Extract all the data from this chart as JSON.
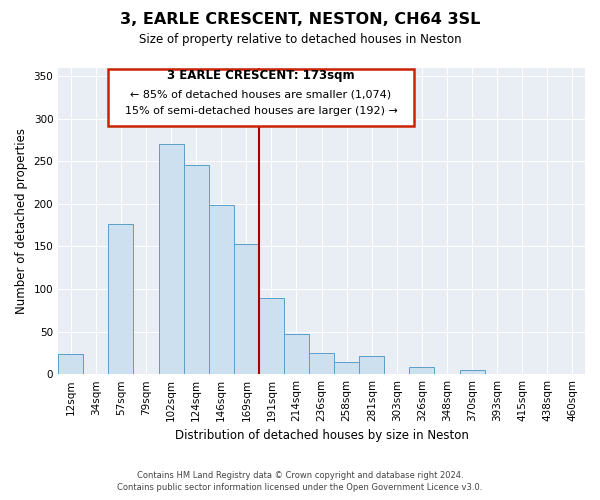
{
  "title": "3, EARLE CRESCENT, NESTON, CH64 3SL",
  "subtitle": "Size of property relative to detached houses in Neston",
  "xlabel": "Distribution of detached houses by size in Neston",
  "ylabel": "Number of detached properties",
  "footer_line1": "Contains HM Land Registry data © Crown copyright and database right 2024.",
  "footer_line2": "Contains public sector information licensed under the Open Government Licence v3.0.",
  "bar_labels": [
    "12sqm",
    "34sqm",
    "57sqm",
    "79sqm",
    "102sqm",
    "124sqm",
    "146sqm",
    "169sqm",
    "191sqm",
    "214sqm",
    "236sqm",
    "258sqm",
    "281sqm",
    "303sqm",
    "326sqm",
    "348sqm",
    "370sqm",
    "393sqm",
    "415sqm",
    "438sqm",
    "460sqm"
  ],
  "bar_values": [
    24,
    0,
    176,
    0,
    270,
    246,
    199,
    153,
    89,
    47,
    25,
    14,
    21,
    0,
    8,
    0,
    5,
    0,
    0,
    0,
    0
  ],
  "bar_color": "#cce0ef",
  "bar_edge_color": "#5b9ec9",
  "ylim": [
    0,
    360
  ],
  "yticks": [
    0,
    50,
    100,
    150,
    200,
    250,
    300,
    350
  ],
  "vline_x": 7.5,
  "vline_color": "#aa0000",
  "annotation_title": "3 EARLE CRESCENT: 173sqm",
  "annotation_line1": "← 85% of detached houses are smaller (1,074)",
  "annotation_line2": "15% of semi-detached houses are larger (192) →",
  "background_color": "#e8eef4",
  "grid_color": "#ffffff"
}
